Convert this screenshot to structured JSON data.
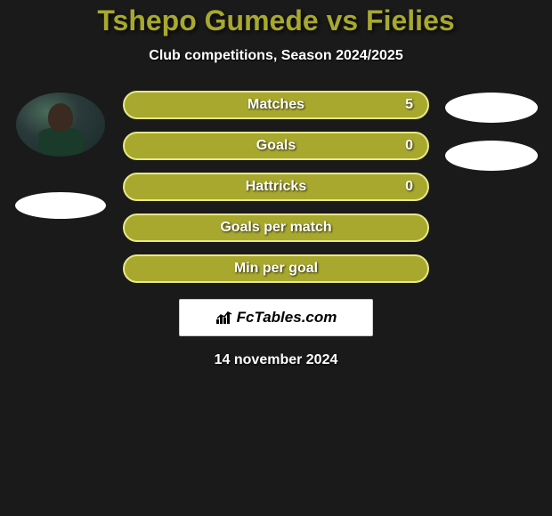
{
  "title": "Tshepo Gumede vs Fielies",
  "subtitle": "Club competitions, Season 2024/2025",
  "stats": [
    {
      "label": "Matches",
      "value": "5",
      "bg_color": "#a8a82e",
      "border_color": "#e8e888",
      "has_value": true
    },
    {
      "label": "Goals",
      "value": "0",
      "bg_color": "#a8a82e",
      "border_color": "#e8e888",
      "has_value": true
    },
    {
      "label": "Hattricks",
      "value": "0",
      "bg_color": "#a8a82e",
      "border_color": "#e8e888",
      "has_value": true
    },
    {
      "label": "Goals per match",
      "value": "",
      "bg_color": "#a8a82e",
      "border_color": "#e8e888",
      "has_value": false
    },
    {
      "label": "Min per goal",
      "value": "",
      "bg_color": "#a8a82e",
      "border_color": "#e8e888",
      "has_value": false
    }
  ],
  "logo_text": "FcTables.com",
  "date": "14 november 2024",
  "colors": {
    "title_color": "#a8a82e",
    "text_color": "#ffffff",
    "background": "#1a1a1a",
    "logo_bg": "#ffffff"
  }
}
